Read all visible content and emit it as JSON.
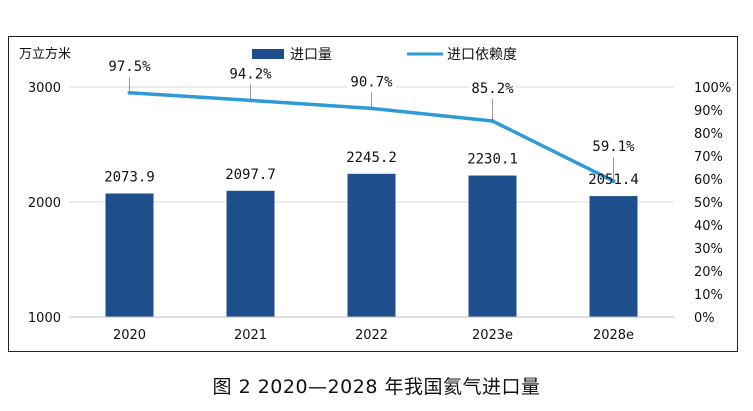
{
  "caption": "图 2  2020—2028 年我国氦气进口量",
  "chart_data": {
    "type": "bar",
    "y_unit_label": "万立方米",
    "categories": [
      "2020",
      "2021",
      "2022",
      "2023e",
      "2028e"
    ],
    "series": [
      {
        "name": "进口量",
        "type": "bar",
        "axis": "left",
        "color": "#1f4e8c",
        "values": [
          2073.9,
          2097.7,
          2245.2,
          2230.1,
          2051.4
        ],
        "labels": [
          "2073.9",
          "2097.7",
          "2245.2",
          "2230.1",
          "2051.4"
        ]
      },
      {
        "name": "进口依赖度",
        "type": "line",
        "axis": "right",
        "color": "#2e9bd6",
        "values": [
          97.5,
          94.2,
          90.7,
          85.2,
          59.1
        ],
        "labels": [
          "97.5%",
          "94.2%",
          "90.7%",
          "85.2%",
          "59.1%"
        ]
      }
    ],
    "y_left": {
      "min": 1000,
      "max": 3000,
      "ticks": [
        "1000",
        "2000",
        "3000"
      ],
      "tick_values": [
        1000,
        2000,
        3000
      ]
    },
    "y_right": {
      "min": 0,
      "max": 100,
      "ticks": [
        "0%",
        "10%",
        "20%",
        "30%",
        "40%",
        "50%",
        "60%",
        "70%",
        "80%",
        "90%",
        "100%"
      ],
      "tick_values": [
        0,
        10,
        20,
        30,
        40,
        50,
        60,
        70,
        80,
        90,
        100
      ]
    },
    "grid": true,
    "legend_position": "top-center"
  }
}
